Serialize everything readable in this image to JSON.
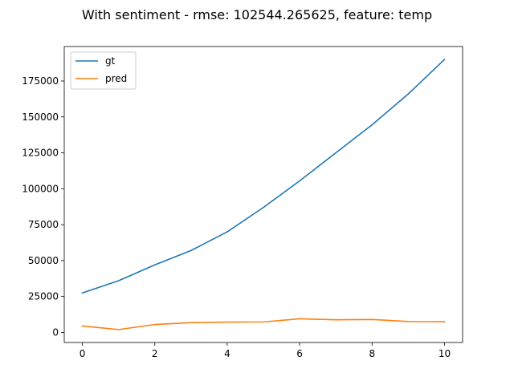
{
  "chart_data": {
    "type": "line",
    "title": "With sentiment - rmse: 102544.265625, feature: temp",
    "xlabel": "",
    "ylabel": "",
    "x": [
      0,
      1,
      2,
      3,
      4,
      5,
      6,
      7,
      8,
      9,
      10
    ],
    "series": [
      {
        "name": "gt",
        "color": "#1f77b4",
        "values": [
          27500,
          36000,
          47000,
          57000,
          70000,
          87000,
          105500,
          125000,
          144500,
          166000,
          190000
        ]
      },
      {
        "name": "pred",
        "color": "#ff7f0e",
        "values": [
          4500,
          2000,
          5500,
          6800,
          7200,
          7300,
          9500,
          8800,
          9000,
          7600,
          7500
        ]
      }
    ],
    "xlim": [
      -0.5,
      10.5
    ],
    "ylim": [
      -7000,
      199000
    ],
    "xticks": [
      0,
      2,
      4,
      6,
      8,
      10
    ],
    "yticks": [
      0,
      25000,
      50000,
      75000,
      100000,
      125000,
      150000,
      175000
    ],
    "grid": false,
    "legend_position": "top-left"
  }
}
